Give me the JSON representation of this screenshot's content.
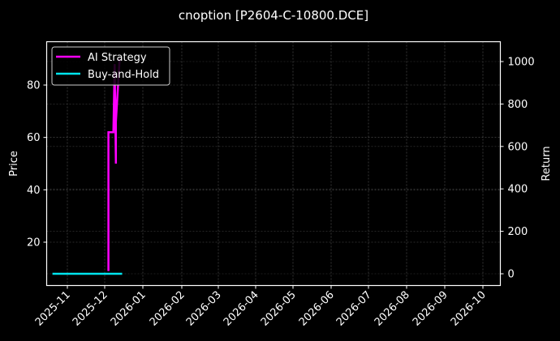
{
  "chart_data": {
    "type": "line",
    "title": "cnoption [P2604-C-10800.DCE]",
    "xlabel": "",
    "ylabel": "Price",
    "y2label": "Return",
    "x_ticks": [
      "2025-11",
      "2025-12",
      "2026-01",
      "2026-02",
      "2026-03",
      "2026-04",
      "2026-05",
      "2026-06",
      "2026-07",
      "2026-08",
      "2026-09",
      "2026-10"
    ],
    "y_ticks": [
      20,
      40,
      60,
      80
    ],
    "y2_ticks": [
      0,
      200,
      400,
      600,
      800,
      1000
    ],
    "ylim": [
      5,
      95
    ],
    "y2lim": [
      -50,
      1100
    ],
    "grid": true,
    "legend_position": "upper left",
    "series": [
      {
        "name": "AI Strategy",
        "color": "#ff00ff",
        "axis": "left",
        "points": [
          {
            "x": "2025-12-04",
            "y": 9
          },
          {
            "x": "2025-12-04",
            "y": 62
          },
          {
            "x": "2025-12-08",
            "y": 62
          },
          {
            "x": "2025-12-09",
            "y": 88
          },
          {
            "x": "2025-12-10",
            "y": 50
          },
          {
            "x": "2025-12-10",
            "y": 66
          },
          {
            "x": "2025-12-13",
            "y": 90
          }
        ]
      },
      {
        "name": "Buy-and-Hold",
        "color": "#00e5ee",
        "axis": "right",
        "points": [
          {
            "x": "2025-10-20",
            "y": 0
          },
          {
            "x": "2025-12-15",
            "y": 0
          }
        ]
      }
    ]
  },
  "legend": {
    "items": [
      {
        "label": "AI Strategy",
        "color": "#ff00ff"
      },
      {
        "label": "Buy-and-Hold",
        "color": "#00e5ee"
      }
    ]
  }
}
